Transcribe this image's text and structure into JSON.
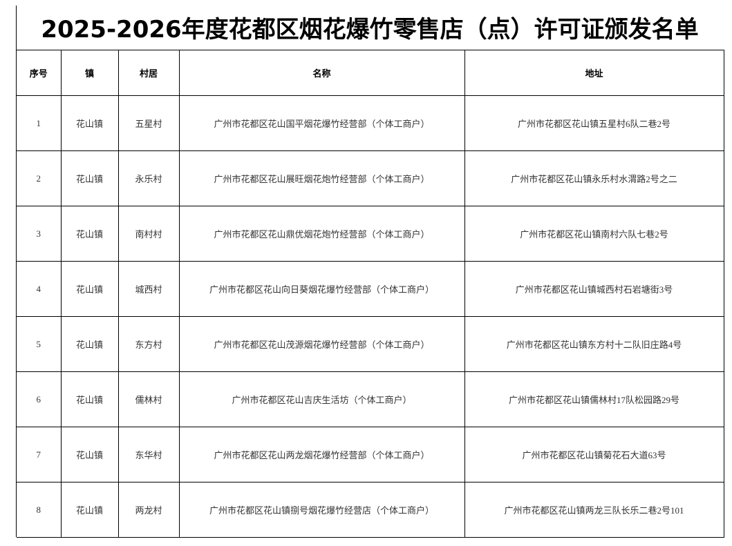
{
  "title": "2025-2026年度花都区烟花爆竹零售店（点）许可证颁发名单",
  "table": {
    "header": [
      "序号",
      "镇",
      "村居",
      "名称",
      "地址"
    ],
    "rows": [
      [
        1,
        "花山镇",
        "五星村",
        "广州市花都区花山国平烟花爆竹经营部（个体工商户）",
        "广州市花都区花山镇五星村6队二巷2号"
      ],
      [
        2,
        "花山镇",
        "永乐村",
        "广州市花都区花山展旺烟花炮竹经营部（个体工商户）",
        "广州市花都区花山镇永乐村水渭路2号之二"
      ],
      [
        3,
        "花山镇",
        "南村村",
        "广州市花都区花山鼎优烟花炮竹经营部（个体工商户）",
        "广州市花都区花山镇南村六队七巷2号"
      ],
      [
        4,
        "花山镇",
        "城西村",
        "广州市花都区花山向日葵烟花爆竹经营部（个体工商户）",
        "广州市花都区花山镇城西村石岩塘街3号"
      ],
      [
        5,
        "花山镇",
        "东方村",
        "广州市花都区花山茂源烟花爆竹经营部（个体工商户）",
        "广州市花都区花山镇东方村十二队旧庄路4号"
      ],
      [
        6,
        "花山镇",
        "儒林村",
        "广州市花都区花山吉庆生活坊（个体工商户）",
        "广州市花都区花山镇儒林村17队松园路29号"
      ],
      [
        7,
        "花山镇",
        "东华村",
        "广州市花都区花山两龙烟花爆竹经营部（个体工商户）",
        "广州市花都区花山镇菊花石大道63号"
      ],
      [
        8,
        "花山镇",
        "两龙村",
        "广州市花都区花山镇捌号烟花爆竹经营店（个体工商户）",
        "广州市花都区花山镇两龙三队长乐二巷2号101"
      ]
    ]
  }
}
